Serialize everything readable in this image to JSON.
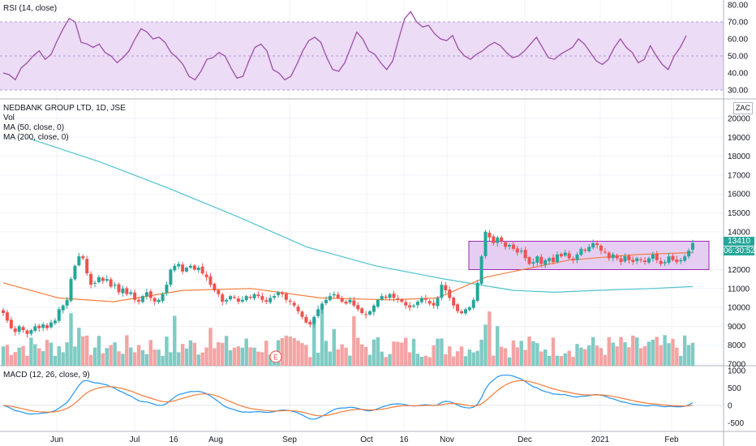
{
  "colors": {
    "up": "#26a69a",
    "down": "#ef5350",
    "vol_up": "#7fcbc4",
    "vol_down": "#f4a3a3",
    "ma50": "#f57c3a",
    "ma200": "#4fc3cf",
    "rsi": "#9c4fa8",
    "rsi_band": "#e9d8f3",
    "macd": "#2196f3",
    "signal": "#f57c3a",
    "box_fill": "#e1c6f0",
    "box_stroke": "#9c27b0"
  },
  "rsi_panel": {
    "label": "RSI (14, close)",
    "ticks": [
      "80.00",
      "70.00",
      "60.00",
      "50.00",
      "40.00",
      "30.00"
    ]
  },
  "main_panel": {
    "labels": [
      "NEDBANK GROUP LTD, 1D, JSE",
      "Vol",
      "MA (50, close, 0)",
      "MA (200, close, 0)"
    ],
    "currency": "ZAC",
    "ticks": [
      "20000",
      "19000",
      "18000",
      "17000",
      "16000",
      "15000",
      "14000",
      "13000",
      "12000",
      "11000",
      "10000",
      "9000",
      "8000",
      "7000"
    ],
    "price_tag": "13410",
    "countdown_tag": "06:30:52",
    "earnings_marker": "E"
  },
  "macd_panel": {
    "label": "MACD (12, 26, close, 9)",
    "ticks": [
      "1000",
      "500",
      "0",
      "-500"
    ]
  },
  "time_axis": {
    "labels": [
      "Jun",
      "Jul",
      "16",
      "Aug",
      "Sep",
      "Oct",
      "16",
      "Nov",
      "Dec",
      "2021",
      "Feb"
    ]
  },
  "chart_data": {
    "type": "candlestick",
    "title": "NEDBANK GROUP LTD, 1D, JSE",
    "y_range": [
      6800,
      20500
    ],
    "consolidation_box": {
      "y_low": 12000,
      "y_high": 13500
    },
    "candles_close": [
      9700,
      9300,
      8900,
      8700,
      9000,
      8800,
      8600,
      8800,
      9000,
      8900,
      9100,
      8900,
      9200,
      9300,
      9900,
      10100,
      10400,
      11500,
      12200,
      12700,
      12600,
      11800,
      11200,
      11300,
      11600,
      11400,
      11500,
      11100,
      11200,
      10800,
      11000,
      10700,
      10800,
      10400,
      10300,
      10600,
      10800,
      10500,
      10300,
      10400,
      10700,
      11200,
      12000,
      12200,
      12300,
      11900,
      12100,
      12200,
      12000,
      12100,
      11800,
      11600,
      11200,
      10900,
      10700,
      10300,
      10400,
      10600,
      10500,
      10300,
      10400,
      10600,
      10500,
      10700,
      10600,
      10400,
      10300,
      10500,
      10600,
      10800,
      10700,
      10400,
      10300,
      10100,
      9800,
      9500,
      9200,
      9100,
      9500,
      9900,
      10200,
      10400,
      10600,
      10700,
      10500,
      10300,
      10200,
      10400,
      10100,
      9900,
      9700,
      9600,
      9800,
      10100,
      10400,
      10600,
      10500,
      10700,
      10500,
      10400,
      10300,
      10100,
      10000,
      10100,
      10300,
      10500,
      10400,
      10200,
      10100,
      10500,
      11200,
      10900,
      10500,
      10100,
      9800,
      9700,
      9900,
      10000,
      10400,
      11300,
      12700,
      14000,
      13700,
      13400,
      13700,
      13500,
      13200,
      13300,
      13100,
      12900,
      13000,
      12600,
      12300,
      12400,
      12700,
      12300,
      12500,
      12600,
      12400,
      12800,
      12700,
      12900,
      12600,
      12500,
      12800,
      13100,
      13000,
      13200,
      13400,
      13300,
      13000,
      12900,
      12600,
      12800,
      12600,
      12400,
      12700,
      12500,
      12400,
      12600,
      12500,
      12400,
      12600,
      12800,
      12500,
      12300,
      12400,
      12700,
      12500,
      12400,
      12500,
      12700,
      13000,
      13410
    ],
    "ma50": [
      [
        0,
        11300
      ],
      [
        0.08,
        10500
      ],
      [
        0.16,
        10300
      ],
      [
        0.26,
        10900
      ],
      [
        0.36,
        11000
      ],
      [
        0.46,
        10500
      ],
      [
        0.56,
        10400
      ],
      [
        0.63,
        10500
      ],
      [
        0.7,
        11600
      ],
      [
        0.82,
        12500
      ],
      [
        0.92,
        12800
      ],
      [
        1.0,
        12900
      ]
    ],
    "ma200": [
      [
        0.04,
        18900
      ],
      [
        0.14,
        17700
      ],
      [
        0.24,
        16300
      ],
      [
        0.34,
        14800
      ],
      [
        0.44,
        13200
      ],
      [
        0.54,
        12200
      ],
      [
        0.64,
        11500
      ],
      [
        0.74,
        10900
      ],
      [
        0.8,
        10800
      ],
      [
        0.86,
        10900
      ],
      [
        0.94,
        11000
      ],
      [
        1.0,
        11100
      ]
    ],
    "rsi": [
      40,
      39,
      36,
      43,
      46,
      50,
      53,
      48,
      51,
      59,
      66,
      72,
      70,
      58,
      57,
      55,
      57,
      52,
      50,
      46,
      49,
      53,
      60,
      66,
      64,
      60,
      61,
      58,
      52,
      49,
      45,
      38,
      36,
      41,
      48,
      49,
      52,
      50,
      43,
      37,
      38,
      47,
      55,
      57,
      53,
      42,
      40,
      36,
      38,
      45,
      53,
      59,
      61,
      58,
      49,
      42,
      41,
      46,
      55,
      64,
      60,
      53,
      51,
      46,
      42,
      47,
      60,
      72,
      76,
      70,
      67,
      68,
      63,
      60,
      59,
      62,
      54,
      50,
      48,
      51,
      53,
      56,
      58,
      56,
      52,
      49,
      50,
      53,
      57,
      61,
      55,
      49,
      48,
      51,
      53,
      55,
      60,
      57,
      52,
      47,
      45,
      48,
      55,
      60,
      55,
      52,
      46,
      48,
      56,
      50,
      45,
      42,
      50,
      55,
      62
    ]
  }
}
